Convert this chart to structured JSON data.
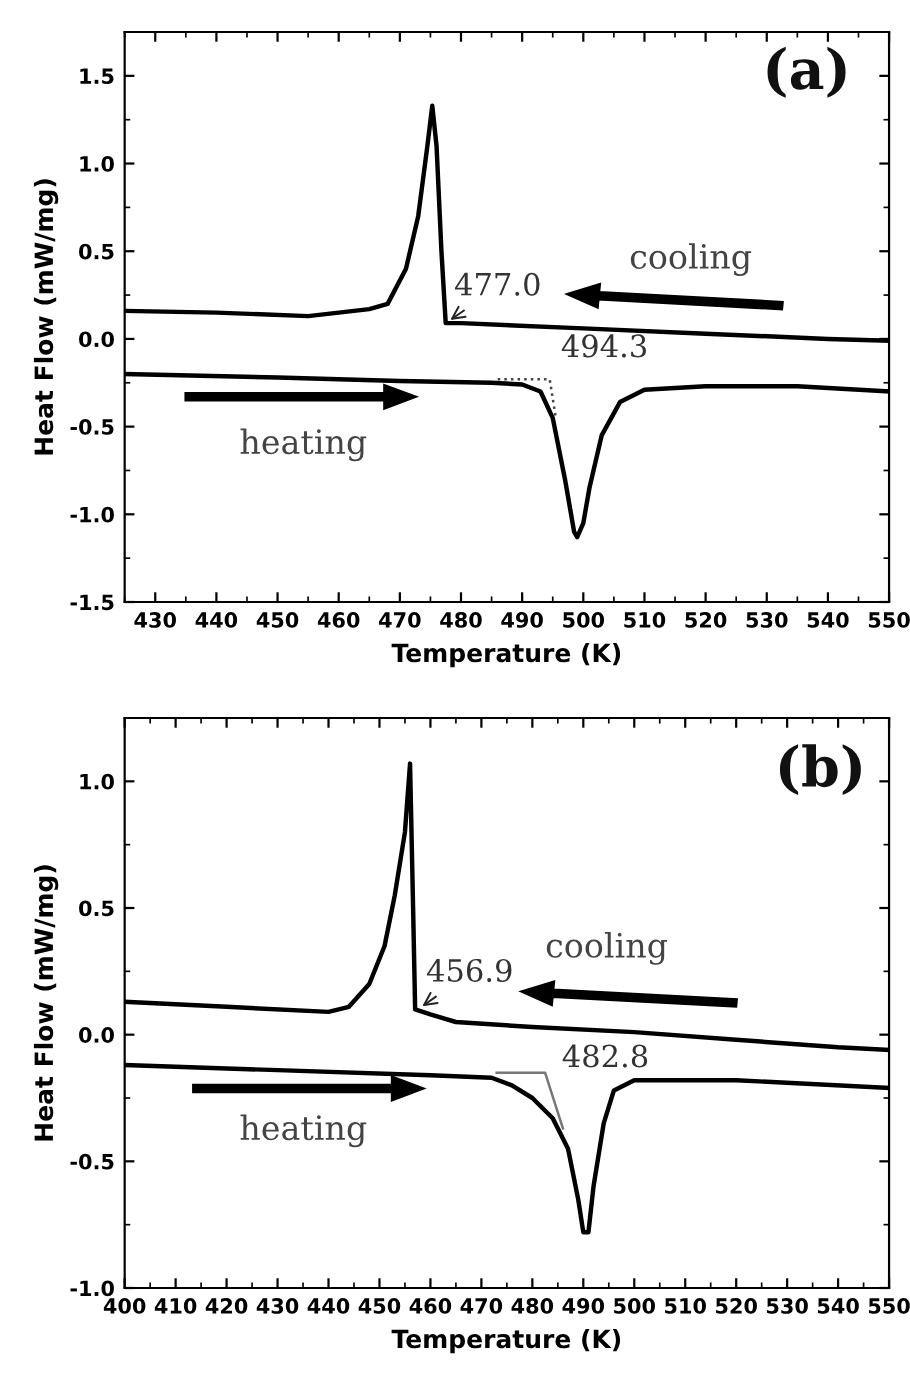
{
  "chart_data": [
    {
      "type": "line",
      "xlabel": "Temperature (K)",
      "ylabel": "Heat Flow (mW/mg)",
      "xlim": [
        425,
        550
      ],
      "ylim": [
        -1.5,
        1.75
      ],
      "xticks": [
        430,
        440,
        450,
        460,
        470,
        480,
        490,
        500,
        510,
        520,
        530,
        540,
        550
      ],
      "yticks": [
        -1.5,
        {
          "value": -1.0,
          "label": "-1.0"
        },
        -0.5,
        {
          "value": 0.0,
          "label": "0.0"
        },
        0.5,
        {
          "value": 1.0,
          "label": "1.0"
        },
        1.5
      ],
      "grid": false,
      "legend": false,
      "marker": "none",
      "series": [
        {
          "color": "#000000",
          "line_style": "solid",
          "x": [
            425,
            440,
            455,
            465,
            468,
            471,
            473,
            474.5,
            475.3,
            476,
            476.8,
            477.5,
            480,
            500,
            520,
            540,
            550
          ],
          "values": [
            0.16,
            0.15,
            0.13,
            0.17,
            0.2,
            0.4,
            0.7,
            1.1,
            1.33,
            1.1,
            0.5,
            0.09,
            0.09,
            0.06,
            0.03,
            0.0,
            -0.01
          ]
        },
        {
          "color": "#000000",
          "line_style": "solid",
          "x": [
            425,
            450,
            470,
            485,
            490,
            493,
            495,
            497,
            498.5,
            499,
            500,
            501,
            503,
            506,
            510,
            520,
            535,
            550
          ],
          "values": [
            -0.2,
            -0.22,
            -0.24,
            -0.25,
            -0.26,
            -0.3,
            -0.45,
            -0.8,
            -1.1,
            -1.13,
            -1.05,
            -0.85,
            -0.55,
            -0.36,
            -0.29,
            -0.27,
            -0.27,
            -0.3
          ]
        },
        {
          "color": "#444444",
          "line_style": "dotted",
          "x": [
            486,
            494.5,
            495.5
          ],
          "values": [
            -0.23,
            -0.23,
            -0.45
          ]
        }
      ],
      "annotations": [
        "(a)",
        "cooling",
        "heating",
        {
          "text": "477.0",
          "x": 477.5,
          "y": 0.09
        },
        {
          "text": "494.3",
          "x": 494.5,
          "y": -0.23
        }
      ]
    },
    {
      "type": "line",
      "xlabel": "Temperature (K)",
      "ylabel": "Heat Flow (mW/mg)",
      "xlim": [
        400,
        550
      ],
      "ylim": [
        -1.0,
        1.25
      ],
      "xticks": [
        400,
        410,
        420,
        430,
        440,
        450,
        460,
        470,
        480,
        490,
        500,
        510,
        520,
        530,
        540,
        550
      ],
      "yticks": [
        {
          "value": -1.0,
          "label": "-1.0"
        },
        -0.5,
        {
          "value": 0.0,
          "label": "0.0"
        },
        0.5,
        {
          "value": 1.0,
          "label": "1.0"
        }
      ],
      "grid": false,
      "legend": false,
      "marker": "none",
      "series": [
        {
          "color": "#000000",
          "line_style": "solid",
          "x": [
            400,
            420,
            440,
            444,
            448,
            451,
            453,
            455,
            456,
            456.6,
            457,
            460,
            465,
            480,
            500,
            520,
            540,
            550
          ],
          "values": [
            0.13,
            0.11,
            0.09,
            0.11,
            0.2,
            0.35,
            0.55,
            0.8,
            1.07,
            0.5,
            0.1,
            0.08,
            0.05,
            0.03,
            0.01,
            -0.02,
            -0.05,
            -0.06
          ]
        },
        {
          "color": "#000000",
          "line_style": "solid",
          "x": [
            400,
            430,
            460,
            472,
            476,
            480,
            484,
            487,
            489,
            490,
            491,
            492,
            494,
            496,
            500,
            520,
            550
          ],
          "values": [
            -0.12,
            -0.14,
            -0.16,
            -0.17,
            -0.2,
            -0.25,
            -0.33,
            -0.45,
            -0.65,
            -0.78,
            -0.78,
            -0.6,
            -0.35,
            -0.22,
            -0.18,
            -0.18,
            -0.21
          ]
        },
        {
          "color": "#777777",
          "line_style": "solid",
          "x": [
            473,
            482.5,
            486
          ],
          "values": [
            -0.15,
            -0.15,
            -0.37
          ]
        }
      ],
      "annotations": [
        "(b)",
        "cooling",
        "heating",
        {
          "text": "456.9",
          "x": 457.5,
          "y": 0.1
        },
        {
          "text": "482.8",
          "x": 482.5,
          "y": -0.15
        }
      ]
    }
  ]
}
